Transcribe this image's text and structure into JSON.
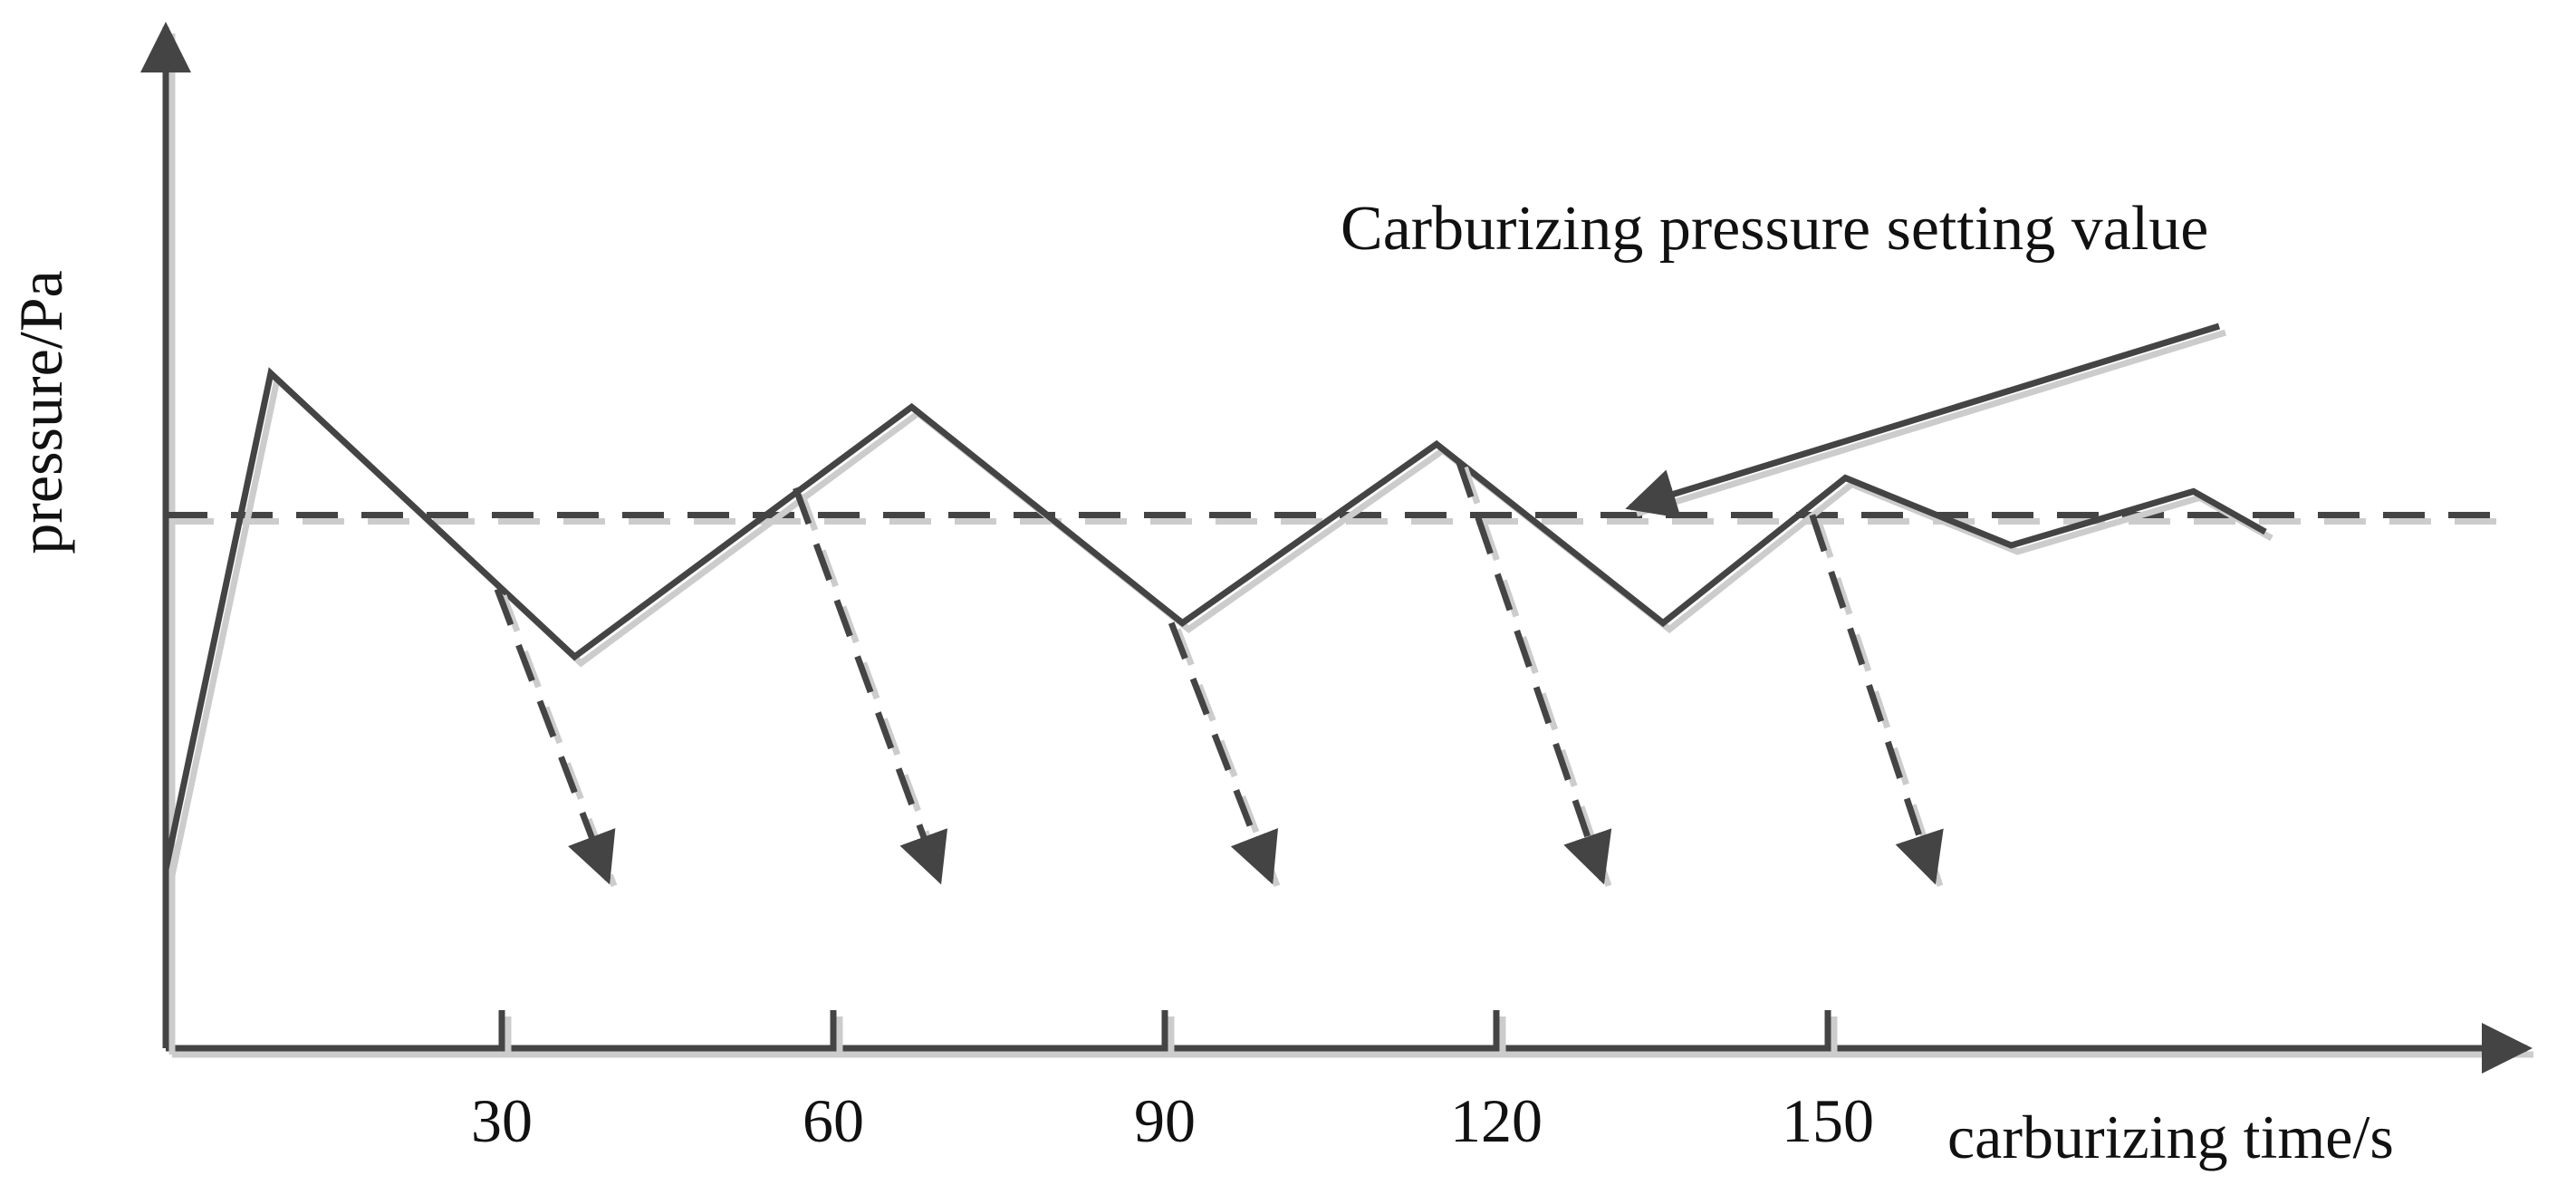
{
  "chart_data": {
    "type": "line",
    "title": "",
    "xlabel": "carburizing time/s",
    "ylabel": "pressure/Pa",
    "xticks": [
      30,
      60,
      90,
      120,
      150
    ],
    "xlim": [
      0,
      210
    ],
    "ylim": [
      0,
      100
    ],
    "y_tick_labels": false,
    "grid": false,
    "legend": "none",
    "series": [
      {
        "x": [
          0,
          9.5,
          37,
          67.5,
          92,
          115,
          135.5,
          152,
          167,
          183.5,
          190
        ],
        "y": [
          26.5,
          100,
          58,
          95,
          63,
          89.5,
          63,
          84.5,
          74.5,
          82.5,
          76.5
        ]
      }
    ],
    "setpoint": {
      "y": 79,
      "label": "Carburizing pressure setting value"
    },
    "dashed_arrows": [
      {
        "from": [
          30,
          68
        ],
        "to": [
          40,
          25
        ]
      },
      {
        "from": [
          57,
          83
        ],
        "to": [
          70,
          25
        ]
      },
      {
        "from": [
          91,
          63
        ],
        "to": [
          100,
          25
        ]
      },
      {
        "from": [
          117,
          87
        ],
        "to": [
          130,
          25
        ]
      },
      {
        "from": [
          149,
          79
        ],
        "to": [
          160,
          25
        ]
      }
    ],
    "colors": {
      "line": "#444444",
      "shadow": "#cccccc",
      "text": "#111111"
    }
  }
}
